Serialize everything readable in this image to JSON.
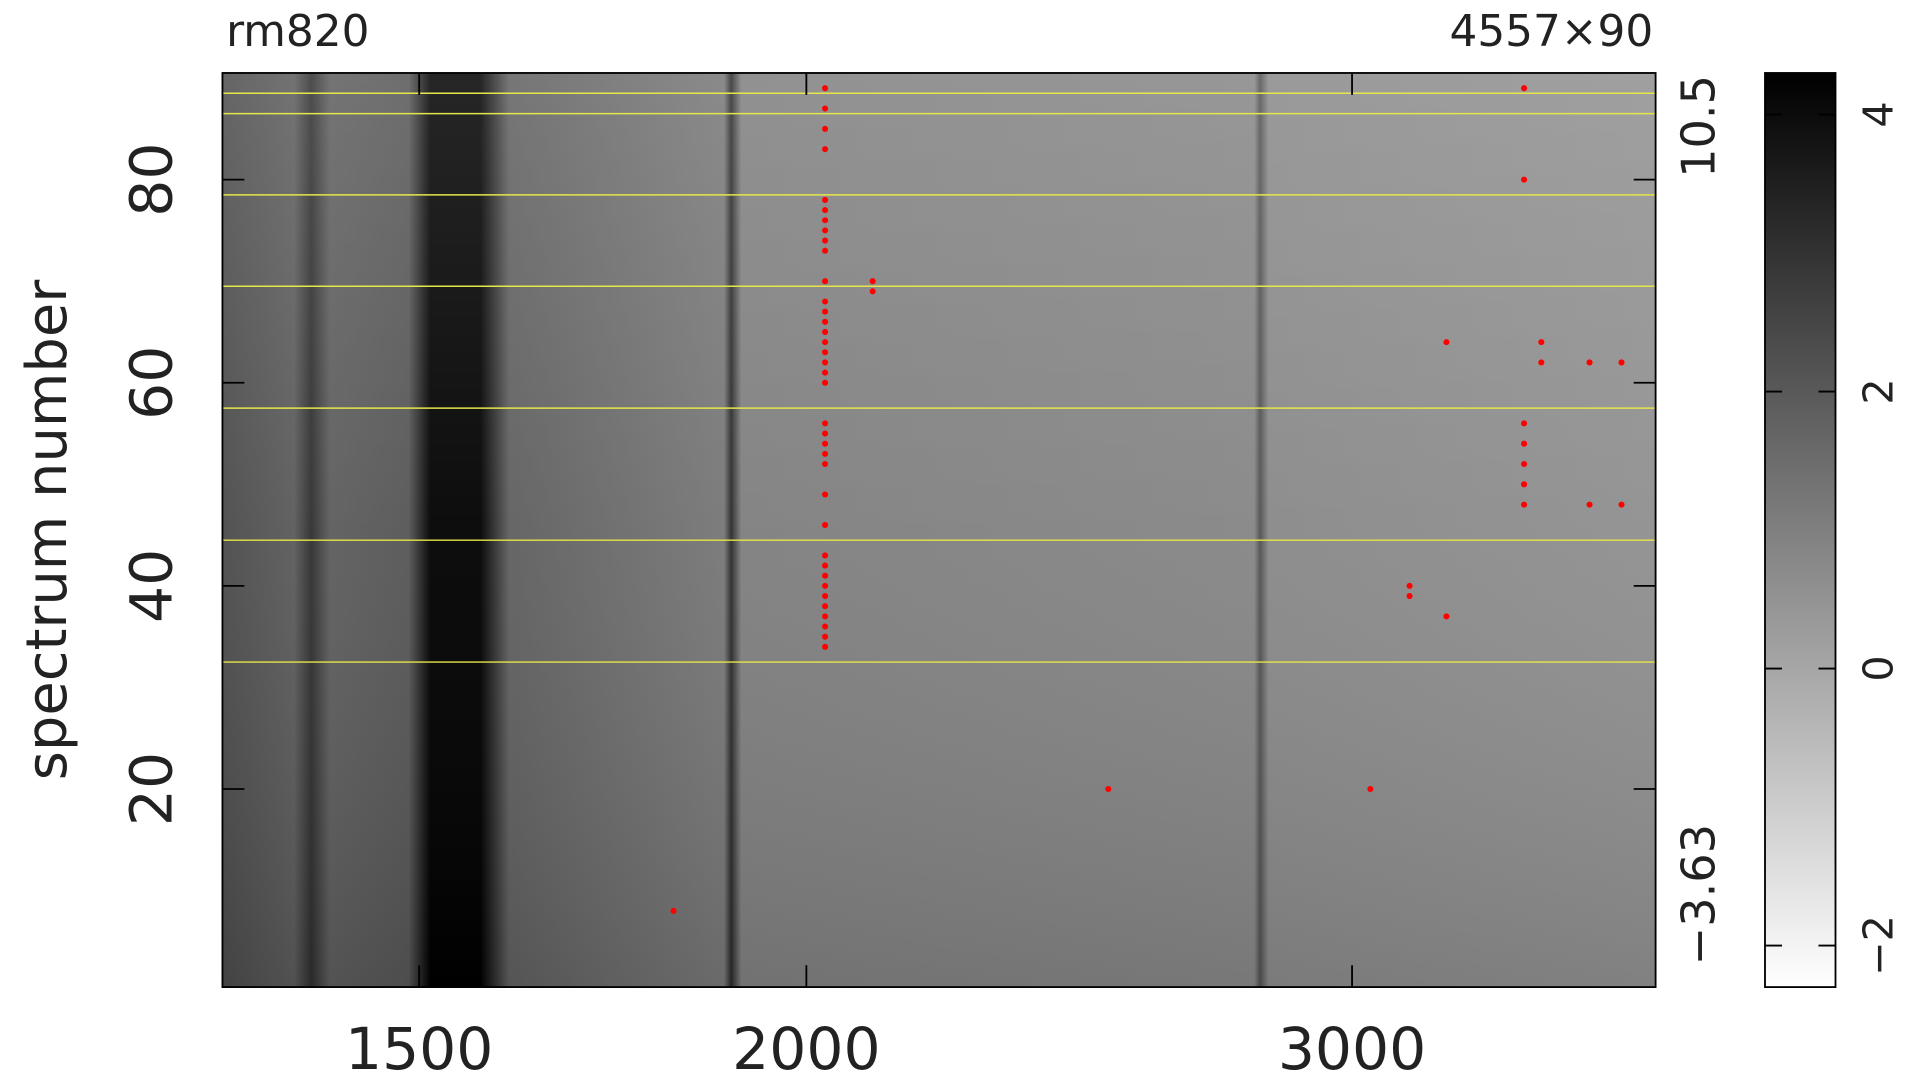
{
  "chart_data": {
    "type": "heatmap",
    "title": "rm820",
    "subtitle": "4557×90",
    "ylabel": "spectrum number",
    "log_x": true,
    "xlim": [
      1296,
      3759
    ],
    "xticks": [
      1500,
      2000,
      3000
    ],
    "ylim": [
      0.5,
      90.5
    ],
    "yticks": [
      20,
      40,
      60,
      80
    ],
    "range_labels": [
      "10.5",
      "−3.63"
    ],
    "clim": [
      -2.3,
      4.3
    ],
    "cticks": [
      {
        "value": -2,
        "label": "−2"
      },
      {
        "value": 0,
        "label": "0"
      },
      {
        "value": 2,
        "label": "2"
      },
      {
        "value": 4,
        "label": "4"
      }
    ],
    "hlines": [
      88.5,
      86.5,
      78.5,
      69.5,
      57.5,
      44.5,
      32.5
    ],
    "hline_color": "#e6e64a",
    "masked_color": "#ff0000",
    "masked": {
      "x": [
        2028,
        2028,
        2028,
        2028,
        2028,
        2028,
        2028,
        2028,
        2028,
        2028,
        2028,
        2028,
        2028,
        2028,
        2028,
        2028,
        2028,
        2028,
        2028,
        2028,
        2028,
        2028,
        2028,
        2028,
        2028,
        2028,
        2028,
        2028,
        2028,
        2028,
        2028,
        2028,
        2028,
        2028,
        2028,
        2028,
        2028,
        2101,
        2101,
        1812,
        2503,
        3041,
        3131,
        3131,
        3218,
        3218,
        3409,
        3409,
        3409,
        3409,
        3409,
        3409,
        3409,
        3453,
        3453,
        3579,
        3579,
        3665,
        3665
      ],
      "y": [
        89,
        87,
        85,
        83,
        78,
        77,
        76,
        75,
        74,
        73,
        70,
        68,
        67,
        66,
        65,
        64,
        63,
        62,
        61,
        60,
        56,
        55,
        54,
        53,
        52,
        49,
        46,
        43,
        42,
        41,
        40,
        39,
        38,
        37,
        36,
        35,
        34,
        70,
        69,
        8,
        20,
        20,
        40,
        39,
        64,
        37,
        89,
        80,
        56,
        54,
        52,
        50,
        48,
        64,
        62,
        62,
        48,
        62,
        48
      ]
    }
  }
}
